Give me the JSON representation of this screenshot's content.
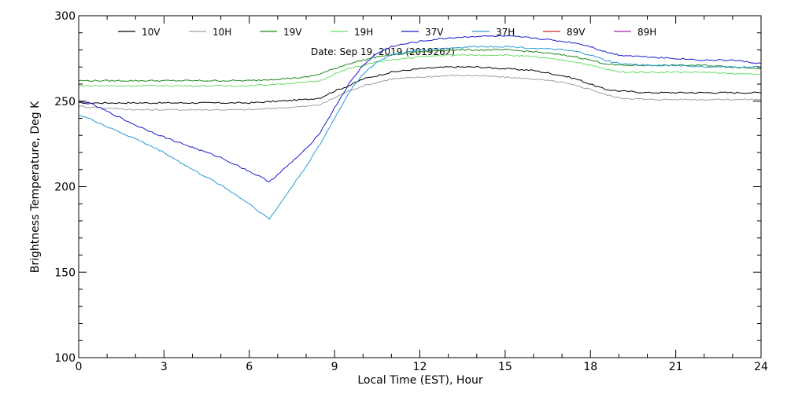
{
  "chart_data": {
    "type": "line",
    "title": "",
    "annotation": "Date: Sep 19, 2019 (2019262)",
    "xlabel": "Local Time (EST), Hour",
    "ylabel": "Brightness Temperature, Deg K",
    "xlim": [
      0,
      24
    ],
    "ylim": [
      100,
      300
    ],
    "xticks": [
      0,
      3,
      6,
      9,
      12,
      15,
      18,
      21,
      24
    ],
    "yticks": [
      100,
      150,
      200,
      250,
      300
    ],
    "grid": false,
    "legend_position": "top",
    "colors": {
      "10V": "#000000",
      "10H": "#a0a0a0",
      "19V": "#1a8a1a",
      "19H": "#66dd66",
      "37V": "#1a1acc",
      "37H": "#2a9ad8",
      "89V": "#cc2222",
      "89H": "#aa22aa"
    },
    "series": [
      {
        "name": "10V",
        "x": [
          0,
          1,
          2,
          3,
          4,
          5,
          6,
          7,
          8,
          8.5,
          9,
          9.5,
          10,
          10.5,
          11,
          12,
          13,
          14,
          15,
          16,
          17,
          17.5,
          18,
          18.5,
          19,
          20,
          21,
          22,
          23,
          24
        ],
        "y": [
          249,
          249,
          249,
          249,
          249,
          249,
          249,
          250,
          251,
          252,
          256,
          259,
          263,
          265,
          267,
          269,
          270,
          270,
          269,
          268,
          265,
          263,
          260,
          257,
          256,
          255,
          255,
          255,
          255,
          255
        ]
      },
      {
        "name": "10H",
        "x": [
          0,
          1,
          2,
          3,
          4,
          5,
          6,
          7,
          8,
          8.5,
          9,
          9.5,
          10,
          10.5,
          11,
          12,
          13,
          14,
          15,
          16,
          17,
          17.5,
          18,
          18.5,
          19,
          20,
          21,
          22,
          23,
          24
        ],
        "y": [
          247,
          246,
          245,
          245,
          245,
          245,
          245,
          246,
          247,
          248,
          252,
          256,
          259,
          261,
          263,
          264,
          265,
          265,
          264,
          263,
          261,
          259,
          257,
          254,
          252,
          251,
          251,
          251,
          251,
          251
        ]
      },
      {
        "name": "19V",
        "x": [
          0,
          1,
          2,
          3,
          4,
          5,
          6,
          7,
          8,
          8.5,
          9,
          9.5,
          10,
          10.5,
          11,
          12,
          13,
          14,
          15,
          16,
          17,
          17.5,
          18,
          18.5,
          19,
          20,
          21,
          22,
          23,
          24
        ],
        "y": [
          262,
          262,
          262,
          262,
          262,
          262,
          262,
          263,
          264,
          266,
          269,
          272,
          274,
          276,
          277,
          279,
          280,
          280,
          280,
          279,
          277,
          276,
          274,
          272,
          271,
          271,
          271,
          271,
          270,
          269
        ]
      },
      {
        "name": "19H",
        "x": [
          0,
          1,
          2,
          3,
          4,
          5,
          6,
          7,
          8,
          8.5,
          9,
          9.5,
          10,
          10.5,
          11,
          12,
          13,
          14,
          15,
          16,
          17,
          17.5,
          18,
          18.5,
          19,
          20,
          21,
          22,
          23,
          24
        ],
        "y": [
          259,
          259,
          259,
          259,
          259,
          259,
          259,
          260,
          261,
          262,
          266,
          269,
          271,
          273,
          274,
          276,
          277,
          277,
          277,
          276,
          274,
          273,
          271,
          269,
          267,
          267,
          267,
          267,
          266,
          266
        ]
      },
      {
        "name": "37V",
        "x": [
          0,
          0.5,
          1,
          2,
          3,
          4,
          5,
          6,
          6.7,
          7,
          8,
          8.5,
          9,
          9.5,
          10,
          10.5,
          11,
          12,
          13,
          14,
          15,
          16,
          17,
          17.5,
          18,
          18.5,
          19,
          20,
          21,
          22,
          23,
          24
        ],
        "y": [
          250,
          248,
          244,
          236,
          229,
          223,
          217,
          209,
          203,
          207,
          222,
          232,
          246,
          260,
          271,
          278,
          282,
          285,
          287,
          288,
          288,
          287,
          285,
          284,
          282,
          279,
          277,
          276,
          275,
          274,
          274,
          272
        ]
      },
      {
        "name": "37H",
        "x": [
          0,
          0.5,
          1,
          2,
          3,
          4,
          5,
          6,
          6.7,
          7,
          8,
          8.5,
          9,
          9.5,
          10,
          10.5,
          11,
          12,
          13,
          14,
          15,
          16,
          17,
          17.5,
          18,
          18.5,
          19,
          20,
          21,
          22,
          23,
          24
        ],
        "y": [
          242,
          239,
          235,
          228,
          220,
          210,
          201,
          190,
          181,
          188,
          212,
          225,
          240,
          255,
          266,
          273,
          277,
          280,
          281,
          282,
          282,
          281,
          280,
          279,
          277,
          274,
          272,
          271,
          271,
          270,
          270,
          270
        ]
      },
      {
        "name": "89V",
        "x": [],
        "y": []
      },
      {
        "name": "89H",
        "x": [],
        "y": []
      }
    ]
  }
}
